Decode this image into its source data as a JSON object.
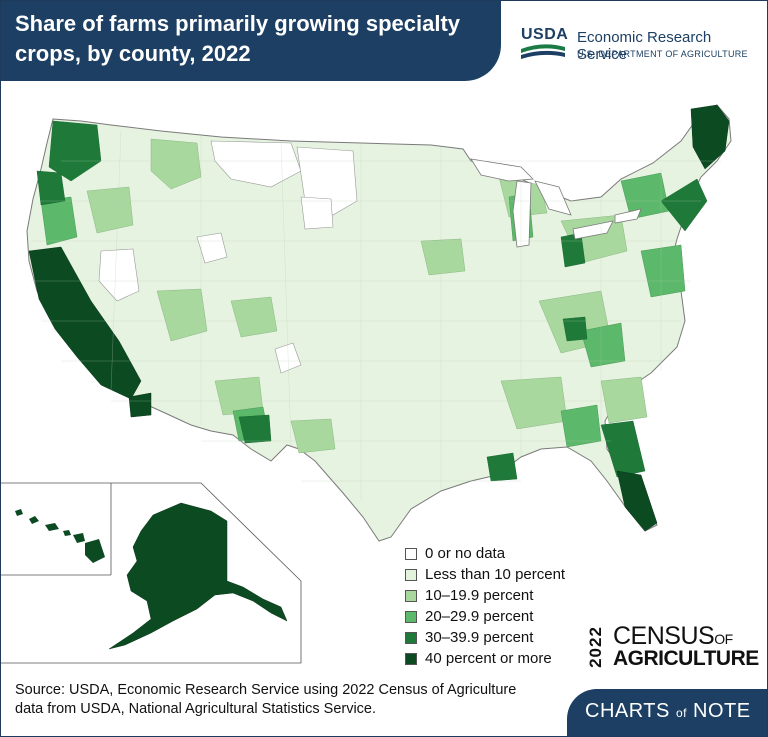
{
  "header": {
    "title_line1": "Share of farms primarily growing specialty",
    "title_line2": "crops, by county, 2022"
  },
  "usda": {
    "mark": "USDA",
    "agency": "Economic Research Service",
    "department": "U.S. DEPARTMENT OF AGRICULTURE"
  },
  "legend": {
    "items": [
      {
        "label": "0 or no data",
        "color": "#ffffff"
      },
      {
        "label": "Less than 10 percent",
        "color": "#e3f2dd"
      },
      {
        "label": "10–19.9 percent",
        "color": "#a8d89e"
      },
      {
        "label": "20–29.9 percent",
        "color": "#5cb86a"
      },
      {
        "label": "30–39.9 percent",
        "color": "#1f7a3a"
      },
      {
        "label": "40 percent or more",
        "color": "#0c4a22"
      }
    ]
  },
  "census_logo": {
    "year": "2022",
    "line1a": "CENSUS",
    "line1b": "OF",
    "line2": "AGRICULTURE"
  },
  "source": {
    "line1": "Source: USDA, Economic Research Service using 2022 Census of Agriculture",
    "line2": "data from USDA, National Agricultural Statistics Service."
  },
  "badge": {
    "part1": "CHARTS",
    "part2": "of",
    "part3": "NOTE"
  }
}
